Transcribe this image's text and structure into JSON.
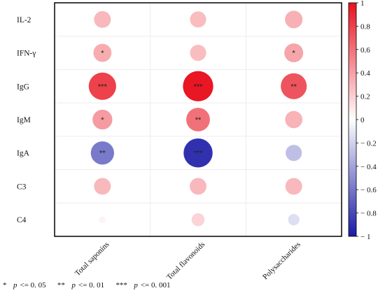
{
  "chart_data": {
    "type": "heatmap",
    "rows": [
      "IL-2",
      "IFN-γ",
      "IgG",
      "IgM",
      "IgA",
      "C3",
      "C4"
    ],
    "columns": [
      "Total saponins",
      "Total flavonoids",
      "Polysaccharides"
    ],
    "values": [
      [
        0.3,
        0.28,
        0.33
      ],
      [
        0.35,
        0.28,
        0.38
      ],
      [
        0.8,
        0.98,
        0.72
      ],
      [
        0.42,
        0.6,
        0.32
      ],
      [
        -0.58,
        -0.9,
        -0.28
      ],
      [
        0.3,
        0.3,
        0.3
      ],
      [
        0.05,
        0.18,
        -0.14
      ]
    ],
    "significance": [
      [
        "",
        "",
        ""
      ],
      [
        "*",
        "",
        "*"
      ],
      [
        "***",
        "***",
        "**"
      ],
      [
        "*",
        "**",
        ""
      ],
      [
        "**",
        "***",
        ""
      ],
      [
        "",
        "",
        ""
      ],
      [
        "",
        "",
        ""
      ]
    ],
    "colorbar": {
      "range": [
        -1,
        1
      ],
      "ticks": [
        "1",
        "0.8",
        "0.6",
        "0.4",
        "0.2",
        "0",
        "− 0.2",
        "− 0.4",
        "− 0.6",
        "− 0.8",
        "− 1"
      ]
    },
    "grid": true
  },
  "legend_note": {
    "items": [
      {
        "stars": "*",
        "p": "p",
        "rest": "<= 0. 05"
      },
      {
        "stars": "**",
        "p": "p",
        "rest": "<= 0. 01"
      },
      {
        "stars": "***",
        "p": "p",
        "rest": "<= 0. 001"
      }
    ]
  },
  "colors": {
    "positive": "#e8121e",
    "negative": "#1a1aa6",
    "neutral": "#ffffff"
  }
}
